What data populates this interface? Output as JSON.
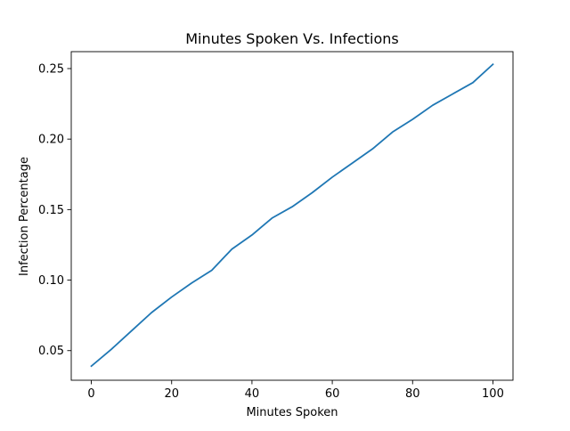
{
  "chart_data": {
    "type": "line",
    "title": "Minutes Spoken Vs. Infections",
    "xlabel": "Minutes Spoken",
    "ylabel": "Infection Percentage",
    "xlim": [
      -5,
      105
    ],
    "ylim": [
      0.029,
      0.262
    ],
    "xticks": [
      0,
      20,
      40,
      60,
      80,
      100
    ],
    "xtick_labels": [
      "0",
      "20",
      "40",
      "60",
      "80",
      "100"
    ],
    "yticks": [
      0.05,
      0.1,
      0.15,
      0.2,
      0.25
    ],
    "ytick_labels": [
      "0.05",
      "0.10",
      "0.15",
      "0.20",
      "0.25"
    ],
    "grid": false,
    "series": [
      {
        "color": "#1f77b4",
        "x": [
          0,
          5,
          10,
          15,
          20,
          25,
          30,
          35,
          40,
          45,
          50,
          55,
          60,
          65,
          70,
          75,
          80,
          85,
          90,
          95,
          100
        ],
        "values": [
          0.039,
          0.051,
          0.064,
          0.077,
          0.088,
          0.098,
          0.107,
          0.122,
          0.132,
          0.144,
          0.152,
          0.162,
          0.173,
          0.183,
          0.193,
          0.205,
          0.214,
          0.224,
          0.232,
          0.24,
          0.253
        ]
      }
    ]
  }
}
